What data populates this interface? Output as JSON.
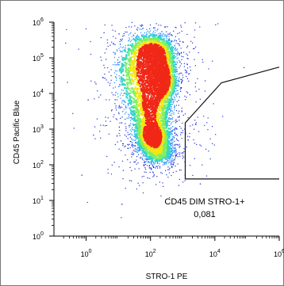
{
  "chart_data": {
    "type": "scatter",
    "title": "",
    "xlabel": "STRO-1 PE",
    "ylabel": "CD45 Pacific Blue",
    "x_scale": "log",
    "y_scale": "log",
    "xlim": [
      0.1,
      1000000
    ],
    "ylim": [
      1,
      1000000
    ],
    "x_ticks": [
      {
        "value": 1,
        "base": "10",
        "exp": "0"
      },
      {
        "value": 100,
        "base": "10",
        "exp": "2"
      },
      {
        "value": 10000,
        "base": "10",
        "exp": "4"
      },
      {
        "value": 1000000,
        "base": "10",
        "exp": "6"
      }
    ],
    "y_ticks": [
      {
        "value": 1,
        "base": "10",
        "exp": "0"
      },
      {
        "value": 10,
        "base": "10",
        "exp": "1"
      },
      {
        "value": 100,
        "base": "10",
        "exp": "2"
      },
      {
        "value": 1000,
        "base": "10",
        "exp": "3"
      },
      {
        "value": 10000,
        "base": "10",
        "exp": "4"
      },
      {
        "value": 100000,
        "base": "10",
        "exp": "5"
      },
      {
        "value": 1000000,
        "base": "10",
        "exp": "6"
      }
    ],
    "density_clusters": [
      {
        "x": 130,
        "y": 150000,
        "x_spread_dec": 0.35,
        "y_spread_dec": 0.25,
        "weight": 0.16
      },
      {
        "x": 250,
        "y": 25000,
        "x_spread_dec": 0.22,
        "y_spread_dec": 0.35,
        "weight": 0.2
      },
      {
        "x": 100,
        "y": 3000,
        "x_spread_dec": 0.35,
        "y_spread_dec": 0.45,
        "weight": 0.16
      },
      {
        "x": 120,
        "y": 600,
        "x_spread_dec": 0.3,
        "y_spread_dec": 0.25,
        "weight": 0.2
      },
      {
        "x": 180,
        "y": 200,
        "x_spread_dec": 0.3,
        "y_spread_dec": 0.2,
        "weight": 0.1
      },
      {
        "x": 60,
        "y": 40000,
        "x_spread_dec": 0.5,
        "y_spread_dec": 0.6,
        "weight": 0.18
      }
    ],
    "gate": {
      "name": "CD45 DIM STRO-1+",
      "value": "0,081",
      "vertices": [
        [
          1000000,
          55000
        ],
        [
          16000,
          20000
        ],
        [
          1200,
          1500
        ],
        [
          1200,
          40
        ],
        [
          1000000,
          40
        ]
      ]
    },
    "colors": {
      "sparse": "#1f2fd8",
      "low": "#1e88ff",
      "mid": "#33d6c8",
      "midhigh": "#7ef060",
      "high": "#f2e614",
      "peak": "#f02818",
      "gate_line": "#111111",
      "axis": "#000000"
    }
  }
}
